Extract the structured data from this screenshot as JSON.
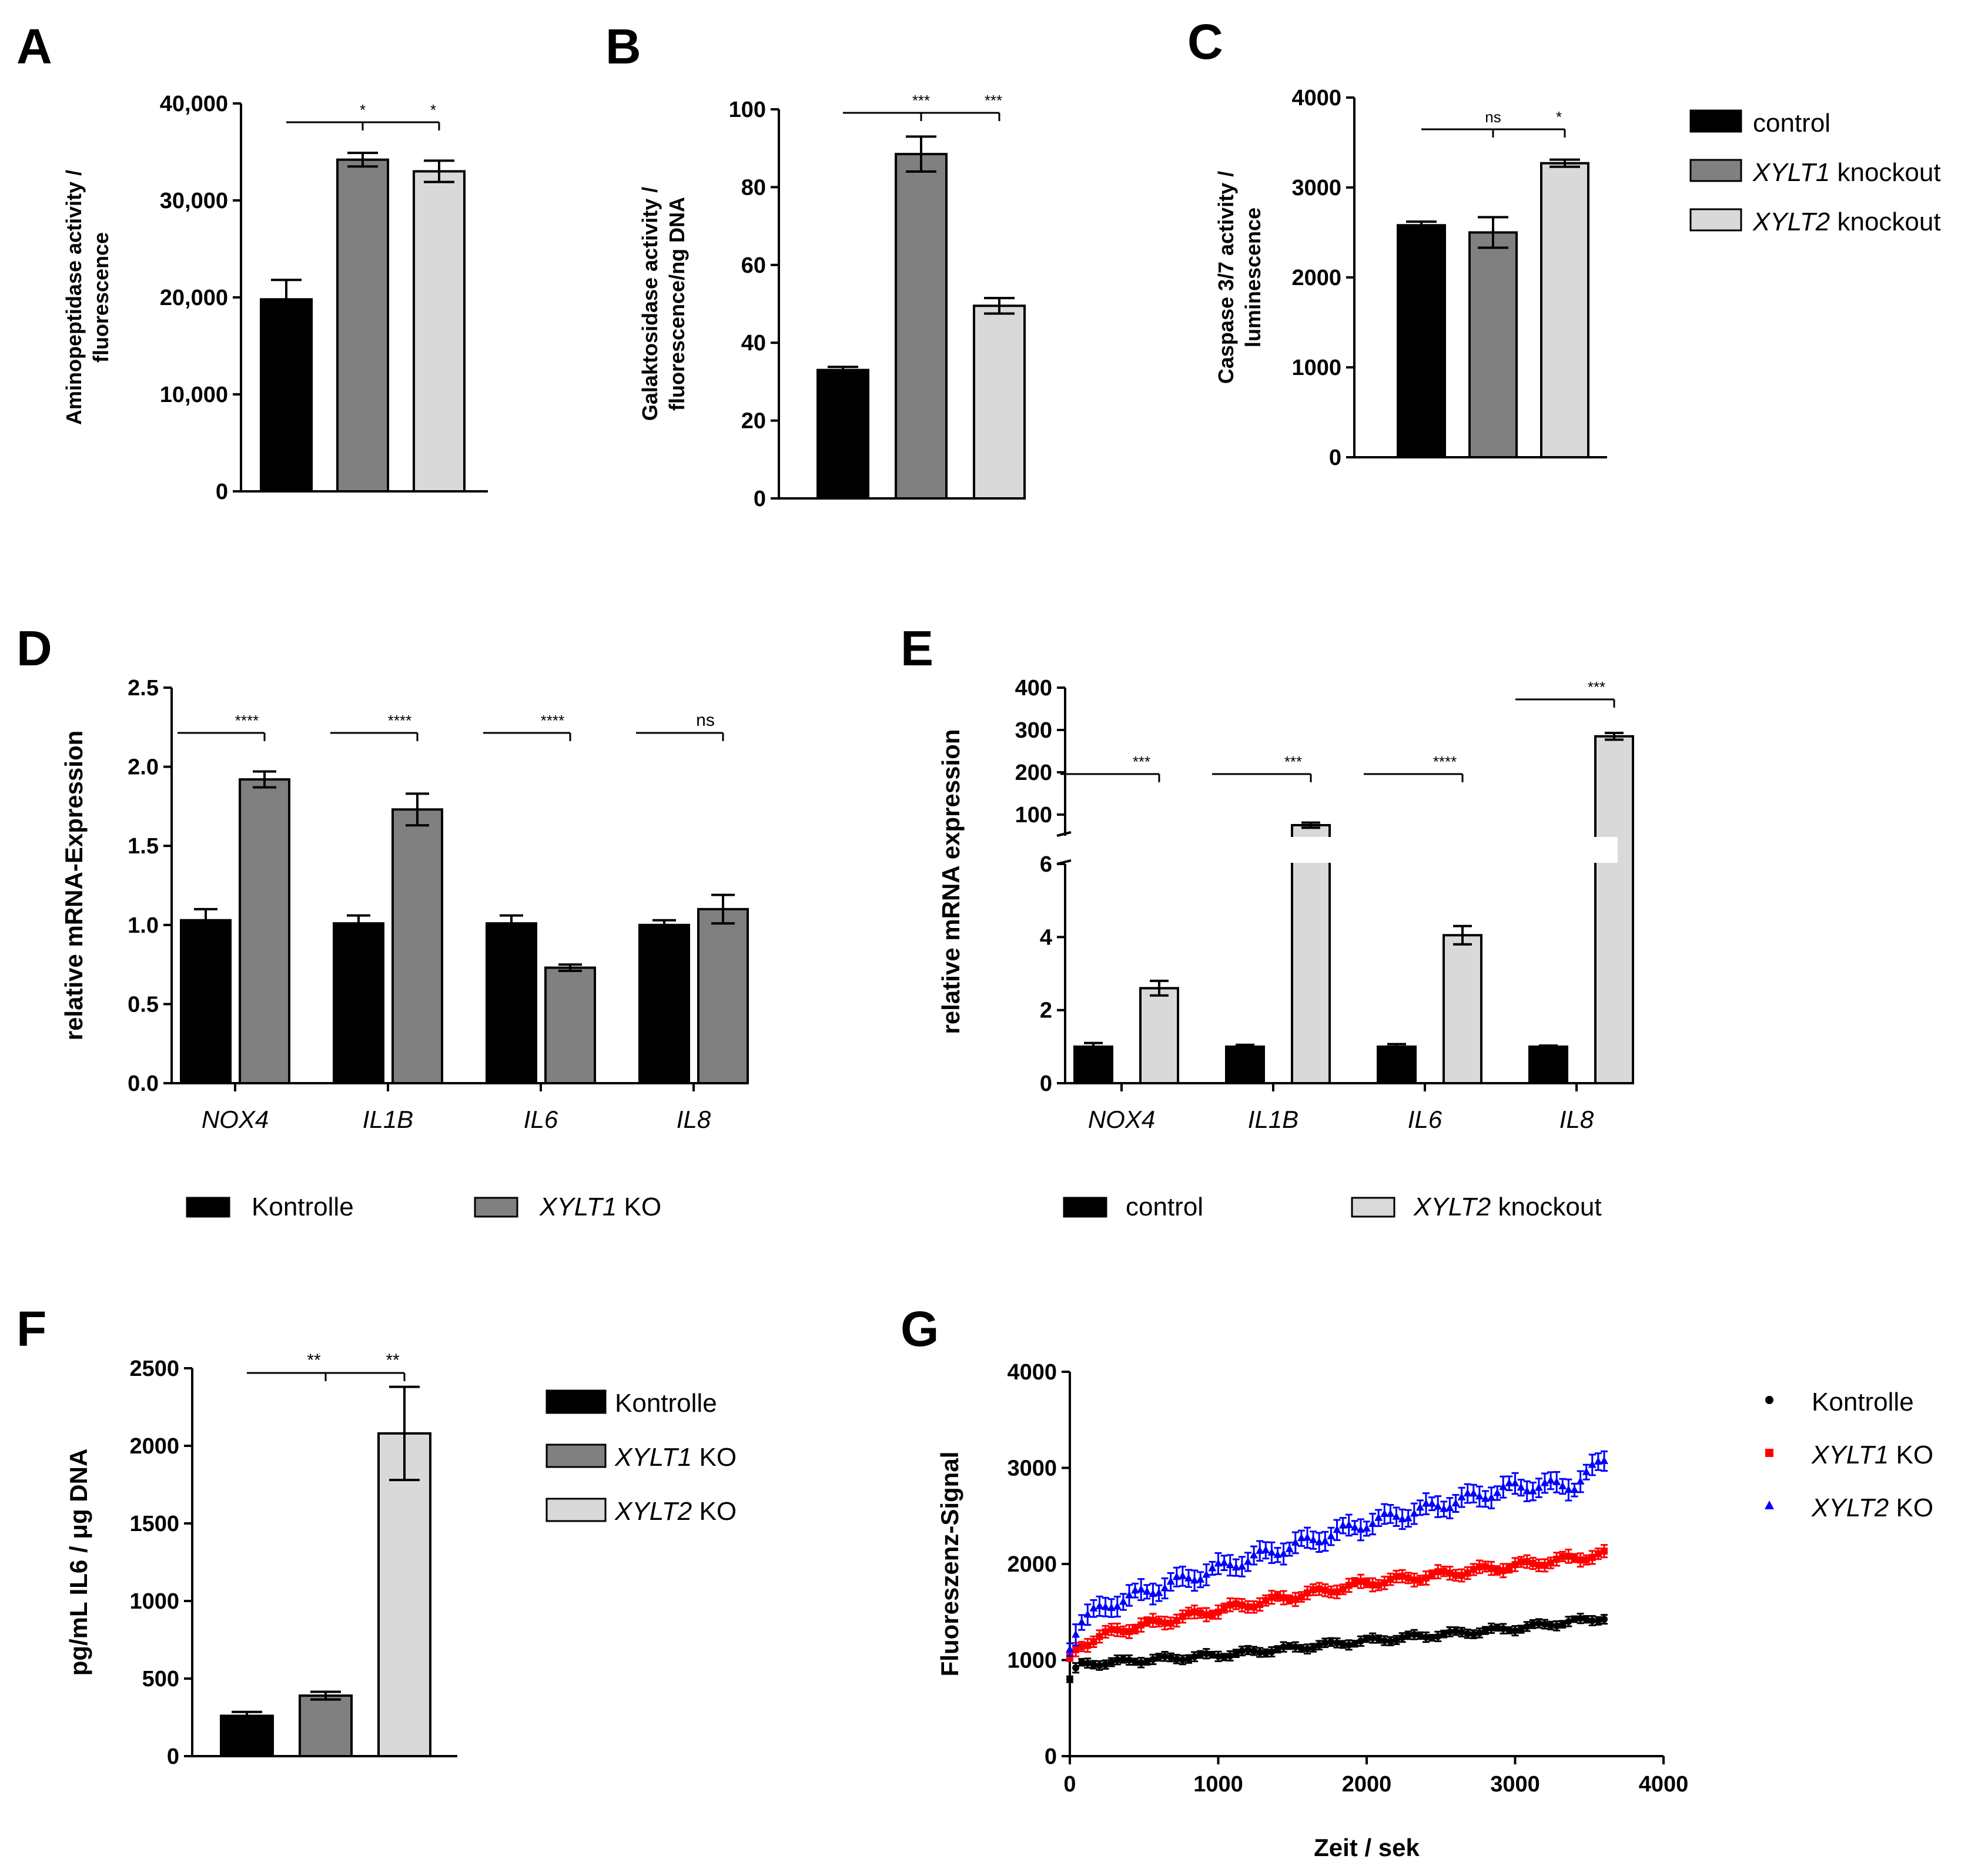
{
  "colors": {
    "control": "#000000",
    "xylt1": "#808080",
    "xylt2": "#d9d9d9",
    "kontrolle_pts": "#000000",
    "xylt1_pts": "#ff0000",
    "xylt2_pts": "#0000ff"
  },
  "chart_data": [
    {
      "id": "A",
      "letter": "A",
      "type": "bar",
      "ylabel_lines": [
        "Aminopeptidase activity /",
        "fluorescence"
      ],
      "ylim": [
        0,
        40000
      ],
      "yticks": [
        0,
        10000,
        20000,
        30000,
        40000
      ],
      "ytick_labels": [
        "0",
        "10,000",
        "20,000",
        "30,000",
        "40,000"
      ],
      "categories": [
        "control",
        "XYLT1 knockout",
        "XYLT2 knockout"
      ],
      "values": [
        19800,
        34200,
        33000
      ],
      "errors": [
        2000,
        700,
        1100
      ],
      "significance": [
        {
          "from": 0,
          "to": 1,
          "label": "*"
        },
        {
          "from": 1,
          "to": 2,
          "label": "*"
        }
      ]
    },
    {
      "id": "B",
      "letter": "B",
      "type": "bar",
      "ylabel_lines": [
        "Galaktosidase activity /",
        "fluorescence/ng DNA"
      ],
      "ylim": [
        0,
        100
      ],
      "yticks": [
        0,
        20,
        40,
        60,
        80,
        100
      ],
      "ytick_labels": [
        "0",
        "20",
        "40",
        "60",
        "80",
        "100"
      ],
      "categories": [
        "control",
        "XYLT1 knockout",
        "XYLT2 knockout"
      ],
      "values": [
        33,
        88.5,
        49.5
      ],
      "errors": [
        0.8,
        4.5,
        2
      ],
      "significance": [
        {
          "from": 0,
          "to": 1,
          "label": "***"
        },
        {
          "from": 1,
          "to": 2,
          "label": "***"
        }
      ]
    },
    {
      "id": "C",
      "letter": "C",
      "type": "bar",
      "ylabel_lines": [
        "Caspase 3/7 activity /",
        "luminescence"
      ],
      "ylim": [
        0,
        4000
      ],
      "yticks": [
        0,
        1000,
        2000,
        3000,
        4000
      ],
      "ytick_labels": [
        "0",
        "1000",
        "2000",
        "3000",
        "4000"
      ],
      "categories": [
        "control",
        "XYLT1 knockout",
        "XYLT2 knockout"
      ],
      "values": [
        2580,
        2500,
        3270
      ],
      "errors": [
        40,
        170,
        40
      ],
      "significance": [
        {
          "from": 0,
          "to": 1,
          "label": "ns"
        },
        {
          "from": 1,
          "to": 2,
          "label": "*"
        }
      ]
    },
    {
      "id": "D",
      "letter": "D",
      "type": "bar",
      "ylabel": "relative mRNA-Expression",
      "ylim": [
        0,
        2.5
      ],
      "yticks": [
        0,
        0.5,
        1.0,
        1.5,
        2.0,
        2.5
      ],
      "ytick_labels": [
        "0.0",
        "0.5",
        "1.0",
        "1.5",
        "2.0",
        "2.5"
      ],
      "categories": [
        "NOX4",
        "IL1B",
        "IL6",
        "IL8"
      ],
      "series": [
        {
          "name": "Kontrolle",
          "values": [
            1.03,
            1.01,
            1.01,
            1.0
          ],
          "errors": [
            0.07,
            0.05,
            0.05,
            0.03
          ]
        },
        {
          "name": "XYLT1 KO",
          "values": [
            1.92,
            1.73,
            0.73,
            1.1
          ],
          "errors": [
            0.05,
            0.1,
            0.02,
            0.09
          ]
        }
      ],
      "significance": [
        "****",
        "****",
        "****",
        "ns"
      ],
      "legend": [
        "Kontrolle",
        "XYLT1 KO"
      ]
    },
    {
      "id": "E",
      "letter": "E",
      "type": "bar",
      "ylabel": "relative mRNA expression",
      "axis_break": [
        6,
        50
      ],
      "yticks_lower": [
        0,
        2,
        4,
        6
      ],
      "ytick_labels_lower": [
        "0",
        "2",
        "4",
        "6"
      ],
      "yticks_upper": [
        100,
        200,
        300,
        400
      ],
      "ytick_labels_upper": [
        "100",
        "200",
        "300",
        "400"
      ],
      "categories": [
        "NOX4",
        "IL1B",
        "IL6",
        "IL8"
      ],
      "series": [
        {
          "name": "control",
          "values": [
            1.0,
            1.0,
            1.0,
            1.0
          ],
          "errors": [
            0.1,
            0.05,
            0.07,
            0.03
          ]
        },
        {
          "name": "XYLT2 knockout",
          "values": [
            2.6,
            75,
            4.05,
            285
          ],
          "errors": [
            0.2,
            6,
            0.25,
            8
          ]
        }
      ],
      "significance": [
        "***",
        "***",
        "****",
        "***"
      ],
      "legend": [
        "control",
        "XYLT2 knockout"
      ]
    },
    {
      "id": "F",
      "letter": "F",
      "type": "bar",
      "ylabel": "pg/mL IL6 / μg DNA",
      "ylim": [
        0,
        2500
      ],
      "yticks": [
        0,
        500,
        1000,
        1500,
        2000,
        2500
      ],
      "ytick_labels": [
        "0",
        "500",
        "1000",
        "1500",
        "2000",
        "2500"
      ],
      "categories": [
        "Kontrolle",
        "XYLT1 KO",
        "XYLT2 KO"
      ],
      "values": [
        260,
        390,
        2080
      ],
      "errors": [
        25,
        25,
        300
      ],
      "significance": [
        {
          "from": 0,
          "to": 1,
          "label": "**"
        },
        {
          "from": 1,
          "to": 2,
          "label": "**"
        }
      ],
      "legend": [
        "Kontrolle",
        "XYLT1 KO",
        "XYLT2 KO"
      ]
    },
    {
      "id": "G",
      "letter": "G",
      "type": "scatter",
      "xlabel": "Zeit / sek",
      "ylabel": "Fluoreszenz-Signal",
      "xlim": [
        0,
        4000
      ],
      "ylim": [
        0,
        4000
      ],
      "xticks": [
        0,
        1000,
        2000,
        3000,
        4000
      ],
      "yticks": [
        0,
        1000,
        2000,
        3000,
        4000
      ],
      "xtick_labels": [
        "0",
        "1000",
        "2000",
        "3000",
        "4000"
      ],
      "ytick_labels": [
        "0",
        "1000",
        "2000",
        "3000",
        "4000"
      ],
      "x_range": [
        0,
        3600
      ],
      "n_points": 91,
      "series": [
        {
          "name": "Kontrolle",
          "marker": "circle",
          "anchors_x": [
            0,
            60,
            300,
            1000,
            2000,
            3000,
            3600
          ],
          "anchors_y": [
            800,
            950,
            980,
            1050,
            1200,
            1330,
            1440
          ],
          "error": 50
        },
        {
          "name": "XYLT1 KO",
          "marker": "square",
          "anchors_x": [
            0,
            60,
            300,
            1000,
            2000,
            3000,
            3600
          ],
          "anchors_y": [
            1000,
            1150,
            1300,
            1520,
            1800,
            1980,
            2100
          ],
          "error": 70
        },
        {
          "name": "XYLT2 KO",
          "marker": "triangle",
          "anchors_x": [
            0,
            60,
            300,
            1000,
            2000,
            3000,
            3400,
            3600
          ],
          "anchors_y": [
            1150,
            1400,
            1600,
            1950,
            2420,
            2800,
            2820,
            3080
          ],
          "error": 110
        }
      ],
      "legend": [
        "Kontrolle",
        "XYLT1 KO",
        "XYLT2 KO"
      ]
    }
  ],
  "legend_top": {
    "items": [
      "control",
      "XYLT1 knockout",
      "XYLT2 knockout"
    ]
  }
}
